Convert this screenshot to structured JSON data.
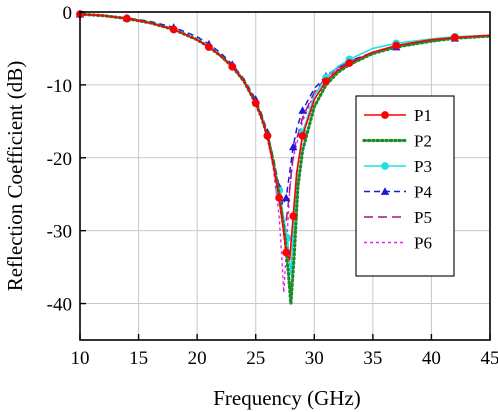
{
  "chart_data": {
    "type": "line",
    "title": "",
    "xlabel": "Frequency (GHz)",
    "ylabel": "Reflection Coefficient (dB)",
    "xlim": [
      10,
      45
    ],
    "ylim": [
      -45,
      0
    ],
    "xticks": [
      10,
      15,
      20,
      25,
      30,
      35,
      40,
      45
    ],
    "yticks": [
      0,
      -10,
      -20,
      -30,
      -40
    ],
    "grid": true,
    "legend_position": "right",
    "series": [
      {
        "name": "P1",
        "color": "#ff0000",
        "dash": "solid",
        "marker": "circle",
        "x": [
          10,
          12,
          14,
          16,
          18,
          20,
          21,
          22,
          23,
          24,
          25,
          25.5,
          26,
          26.5,
          27,
          27.3,
          27.6,
          27.9,
          28.2,
          28.5,
          29,
          30,
          31,
          32,
          33,
          35,
          37,
          40,
          42,
          45
        ],
        "y": [
          -0.3,
          -0.5,
          -0.9,
          -1.5,
          -2.4,
          -3.8,
          -4.8,
          -6.0,
          -7.5,
          -9.5,
          -12.5,
          -14.5,
          -17.0,
          -21.0,
          -25.5,
          -29.0,
          -33.0,
          -34.0,
          -28.0,
          -22.0,
          -17.0,
          -12.0,
          -9.5,
          -8.0,
          -7.0,
          -5.5,
          -4.6,
          -3.8,
          -3.5,
          -3.2
        ]
      },
      {
        "name": "P2",
        "color": "#1a8c2a",
        "dash": "dotted",
        "marker": "none",
        "x": [
          10,
          12,
          14,
          16,
          18,
          20,
          21,
          22,
          23,
          24,
          25,
          25.5,
          26,
          26.5,
          27,
          27.5,
          27.8,
          28.0,
          28.3,
          28.6,
          29,
          30,
          31,
          32,
          33,
          35,
          37,
          40,
          42,
          45
        ],
        "y": [
          -0.3,
          -0.5,
          -0.9,
          -1.5,
          -2.4,
          -3.8,
          -4.8,
          -6.0,
          -7.5,
          -9.5,
          -12.5,
          -14.5,
          -17.0,
          -20.5,
          -25.0,
          -31.0,
          -36.0,
          -40.0,
          -33.0,
          -24.0,
          -19.0,
          -13.0,
          -10.0,
          -8.3,
          -7.2,
          -5.7,
          -4.8,
          -4.0,
          -3.6,
          -3.3
        ]
      },
      {
        "name": "P3",
        "color": "#22e0e0",
        "dash": "solid",
        "marker": "circle",
        "x": [
          10,
          12,
          14,
          16,
          18,
          20,
          21,
          22,
          23,
          24,
          25,
          25.5,
          26,
          26.5,
          27,
          27.3,
          27.7,
          28.0,
          28.3,
          28.6,
          29,
          30,
          31,
          32,
          33,
          35,
          37,
          40,
          42,
          45
        ],
        "y": [
          -0.3,
          -0.5,
          -0.9,
          -1.5,
          -2.4,
          -3.8,
          -4.8,
          -6.0,
          -7.5,
          -9.5,
          -12.5,
          -14.5,
          -17.0,
          -21.0,
          -24.5,
          -27.5,
          -31.0,
          -36.0,
          -28.0,
          -21.0,
          -16.5,
          -11.5,
          -9.0,
          -7.5,
          -6.5,
          -5.0,
          -4.3,
          -3.7,
          -3.4,
          -3.2
        ]
      },
      {
        "name": "P4",
        "color": "#1a1adc",
        "dash": "dashed",
        "marker": "triangle",
        "x": [
          10,
          12,
          14,
          16,
          18,
          20,
          21,
          22,
          23,
          24,
          25,
          25.5,
          26,
          26.5,
          27,
          27.3,
          27.6,
          27.9,
          28.2,
          28.5,
          29,
          30,
          31,
          32,
          33,
          35,
          37,
          40,
          42,
          45
        ],
        "y": [
          -0.3,
          -0.5,
          -0.8,
          -1.3,
          -2.1,
          -3.4,
          -4.4,
          -5.6,
          -7.2,
          -9.2,
          -12.0,
          -14.0,
          -16.5,
          -20.0,
          -24.0,
          -26.5,
          -25.5,
          -22.0,
          -18.5,
          -16.0,
          -13.5,
          -10.5,
          -8.8,
          -7.6,
          -6.7,
          -5.6,
          -4.8,
          -4.0,
          -3.6,
          -3.3
        ]
      },
      {
        "name": "P5",
        "color": "#a0148c",
        "dash": "longdash",
        "marker": "none",
        "x": [
          10,
          12,
          14,
          16,
          18,
          20,
          21,
          22,
          23,
          24,
          25,
          25.5,
          26,
          26.5,
          27,
          27.3,
          27.5,
          27.8,
          28.1,
          28.4,
          29,
          30,
          31,
          32,
          33,
          35,
          37,
          40,
          42,
          45
        ],
        "y": [
          -0.3,
          -0.5,
          -0.9,
          -1.5,
          -2.4,
          -3.8,
          -4.8,
          -6.0,
          -7.5,
          -9.5,
          -12.5,
          -14.5,
          -17.0,
          -21.0,
          -26.0,
          -29.0,
          -30.0,
          -26.0,
          -21.0,
          -18.0,
          -14.5,
          -11.0,
          -9.0,
          -7.7,
          -6.8,
          -5.5,
          -4.7,
          -3.9,
          -3.6,
          -3.3
        ]
      },
      {
        "name": "P6",
        "color": "#f01ef0",
        "dash": "shortdash",
        "marker": "none",
        "x": [
          10,
          12,
          14,
          16,
          18,
          20,
          21,
          22,
          23,
          24,
          25,
          25.5,
          26,
          26.5,
          27,
          27.2,
          27.4,
          27.6,
          27.9,
          28.2,
          29,
          30,
          31,
          32,
          33,
          35,
          37,
          40,
          42,
          45
        ],
        "y": [
          -0.3,
          -0.5,
          -0.9,
          -1.5,
          -2.4,
          -3.8,
          -4.8,
          -6.0,
          -7.5,
          -9.5,
          -12.5,
          -14.5,
          -17.0,
          -21.5,
          -28.0,
          -33.0,
          -38.5,
          -33.0,
          -24.5,
          -20.0,
          -15.0,
          -11.2,
          -9.2,
          -7.8,
          -6.9,
          -5.6,
          -4.8,
          -4.0,
          -3.6,
          -3.3
        ]
      }
    ]
  }
}
